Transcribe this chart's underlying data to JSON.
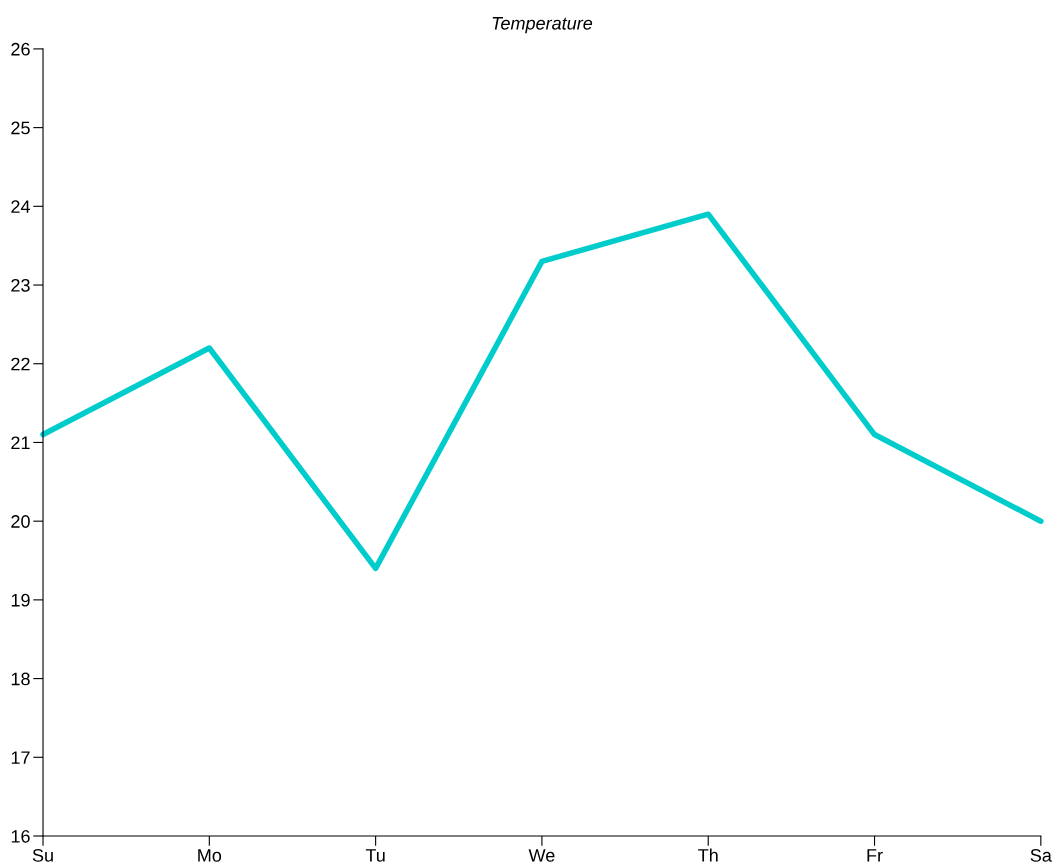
{
  "chart_data": {
    "type": "line",
    "title": "Temperature",
    "categories": [
      "Su",
      "Mo",
      "Tu",
      "We",
      "Th",
      "Fr",
      "Sa"
    ],
    "series": [
      {
        "color": "#00cccc",
        "values": [
          21.1,
          22.2,
          19.4,
          23.3,
          23.9,
          21.1,
          20.0
        ]
      }
    ],
    "ylim": [
      16,
      26
    ],
    "yticks": [
      16,
      17,
      18,
      19,
      20,
      21,
      22,
      23,
      24,
      25,
      26
    ],
    "grid": false,
    "legend": false,
    "marker": "none",
    "line_style": "solid"
  }
}
